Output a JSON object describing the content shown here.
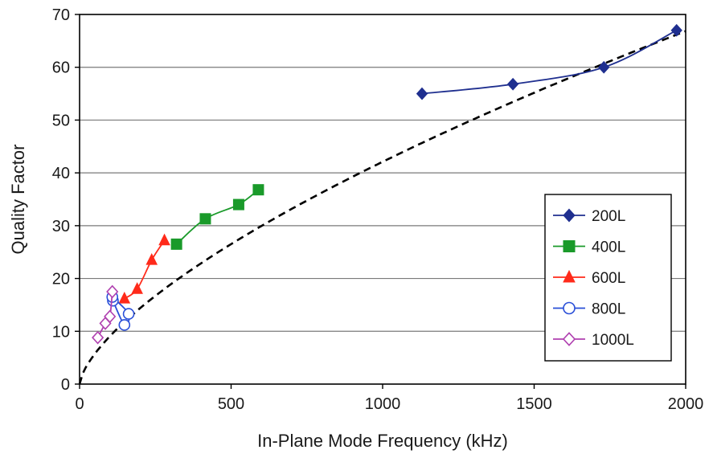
{
  "chart_data": {
    "type": "line",
    "xlabel": "In-Plane Mode Frequency (kHz)",
    "ylabel": "Quality Factor",
    "xlim": [
      0,
      2000
    ],
    "ylim": [
      0,
      70
    ],
    "xticks": [
      0,
      500,
      1000,
      1500,
      2000
    ],
    "yticks": [
      0,
      10,
      20,
      30,
      40,
      50,
      60,
      70
    ],
    "grid": "horizontal",
    "legend_position": "bottom-right",
    "series": [
      {
        "name": "200L",
        "marker": "diamond-filled",
        "color": "#1f2f8f",
        "x": [
          1130,
          1430,
          1730,
          1970
        ],
        "y": [
          55,
          56.8,
          60,
          67
        ]
      },
      {
        "name": "400L",
        "marker": "square-filled",
        "color": "#1a9a2a",
        "x": [
          320,
          415,
          525,
          590
        ],
        "y": [
          26.5,
          31.3,
          34,
          36.8
        ]
      },
      {
        "name": "600L",
        "marker": "triangle-filled",
        "color": "#ff2a1a",
        "x": [
          148,
          190,
          238,
          280
        ],
        "y": [
          16.2,
          18,
          23.5,
          27.2
        ]
      },
      {
        "name": "800L",
        "marker": "circle-open",
        "color": "#2a4fd8",
        "x": [
          110,
          148,
          162,
          108
        ],
        "y": [
          15.8,
          11.2,
          13.3,
          16.5
        ]
      },
      {
        "name": "1000L",
        "marker": "diamond-open",
        "color": "#b040b0",
        "x": [
          60,
          85,
          100,
          108
        ],
        "y": [
          8.8,
          11.5,
          12.8,
          17.5
        ]
      }
    ],
    "fit_curve": {
      "style": "dashed",
      "color": "#000000",
      "a": 0.42,
      "b": 0.667
    }
  }
}
